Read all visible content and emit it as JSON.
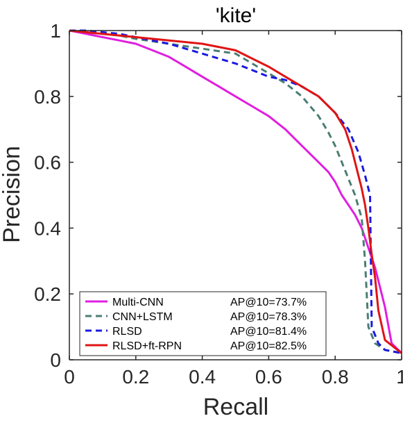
{
  "chart_data": {
    "type": "line",
    "title": "'kite'",
    "xlabel": "Recall",
    "ylabel": "Precision",
    "xlim": [
      0,
      1
    ],
    "ylim": [
      0,
      1
    ],
    "xticks": [
      "0",
      "0.2",
      "0.4",
      "0.6",
      "0.8",
      "1"
    ],
    "yticks": [
      "0",
      "0.2",
      "0.4",
      "0.6",
      "0.8",
      "1"
    ],
    "grid": false,
    "legend_position": "bottom-left",
    "series": [
      {
        "name": "Multi-CNN",
        "ap_label": "AP@10=73.7%",
        "color": "#e01ee0",
        "dash": "solid",
        "x": [
          0,
          0.05,
          0.1,
          0.15,
          0.2,
          0.25,
          0.3,
          0.35,
          0.4,
          0.45,
          0.5,
          0.55,
          0.6,
          0.65,
          0.7,
          0.75,
          0.78,
          0.8,
          0.82,
          0.84,
          0.86,
          0.88,
          0.9,
          0.92,
          0.94,
          0.95,
          0.97,
          1.0
        ],
        "y": [
          1.0,
          0.99,
          0.98,
          0.97,
          0.96,
          0.94,
          0.92,
          0.89,
          0.86,
          0.83,
          0.8,
          0.77,
          0.74,
          0.7,
          0.65,
          0.6,
          0.57,
          0.54,
          0.5,
          0.47,
          0.44,
          0.4,
          0.34,
          0.28,
          0.2,
          0.16,
          0.05,
          0.02
        ]
      },
      {
        "name": "CNN+LSTM",
        "ap_label": "AP@10=78.3%",
        "color": "#4a7e73",
        "dash": "dashed",
        "x": [
          0,
          0.05,
          0.1,
          0.15,
          0.2,
          0.3,
          0.4,
          0.5,
          0.55,
          0.6,
          0.65,
          0.7,
          0.75,
          0.78,
          0.8,
          0.82,
          0.84,
          0.86,
          0.88,
          0.89,
          0.9,
          0.92,
          0.95,
          1.0
        ],
        "y": [
          1.0,
          0.995,
          0.99,
          0.985,
          0.975,
          0.96,
          0.945,
          0.93,
          0.9,
          0.87,
          0.84,
          0.8,
          0.74,
          0.69,
          0.65,
          0.6,
          0.55,
          0.5,
          0.43,
          0.3,
          0.1,
          0.05,
          0.03,
          0.02
        ]
      },
      {
        "name": "RLSD",
        "ap_label": "AP@10=81.4%",
        "color": "#1a1ae0",
        "dash": "dashed",
        "x": [
          0,
          0.05,
          0.1,
          0.15,
          0.2,
          0.3,
          0.4,
          0.5,
          0.55,
          0.6,
          0.65,
          0.7,
          0.75,
          0.8,
          0.84,
          0.87,
          0.89,
          0.9,
          0.905,
          0.91,
          0.93,
          0.95,
          1.0
        ],
        "y": [
          1.0,
          1.0,
          0.995,
          0.99,
          0.98,
          0.96,
          0.93,
          0.9,
          0.88,
          0.86,
          0.85,
          0.83,
          0.8,
          0.75,
          0.7,
          0.63,
          0.56,
          0.52,
          0.5,
          0.1,
          0.05,
          0.03,
          0.02
        ]
      },
      {
        "name": "RLSD+ft-RPN",
        "ap_label": "AP@10=82.5%",
        "color": "#e01414",
        "dash": "solid",
        "x": [
          0,
          0.05,
          0.1,
          0.15,
          0.2,
          0.3,
          0.4,
          0.5,
          0.6,
          0.65,
          0.7,
          0.75,
          0.8,
          0.83,
          0.85,
          0.87,
          0.88,
          0.89,
          0.9,
          0.91,
          0.92,
          0.93,
          0.95,
          1.0
        ],
        "y": [
          1.0,
          0.995,
          0.99,
          0.985,
          0.98,
          0.97,
          0.96,
          0.94,
          0.89,
          0.86,
          0.83,
          0.8,
          0.75,
          0.7,
          0.64,
          0.56,
          0.52,
          0.47,
          0.4,
          0.32,
          0.25,
          0.15,
          0.06,
          0.02
        ]
      }
    ]
  }
}
